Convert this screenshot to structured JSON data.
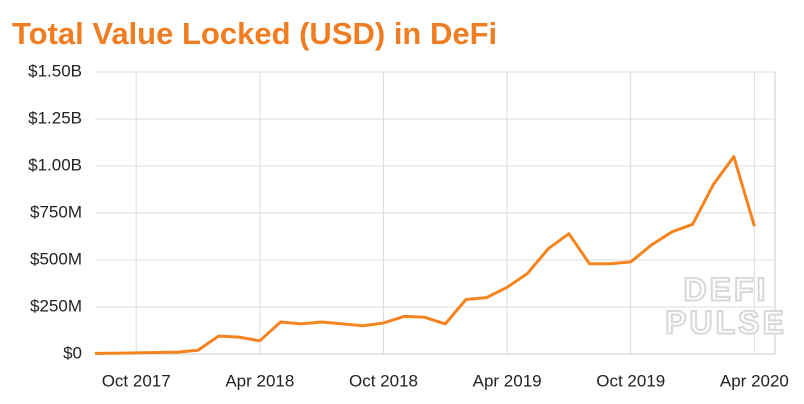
{
  "chart_data": {
    "type": "line",
    "title": "Total Value Locked (USD) in DeFi",
    "annotations": [
      "DEFI",
      "PULSE"
    ],
    "x": [
      "2017-08",
      "2017-09",
      "2017-10",
      "2017-11",
      "2017-12",
      "2018-01",
      "2018-02",
      "2018-03",
      "2018-04",
      "2018-05",
      "2018-06",
      "2018-07",
      "2018-08",
      "2018-09",
      "2018-10",
      "2018-11",
      "2018-12",
      "2019-01",
      "2019-02",
      "2019-03",
      "2019-04",
      "2019-05",
      "2019-06",
      "2019-07",
      "2019-08",
      "2019-09",
      "2019-10",
      "2019-11",
      "2019-12",
      "2020-01",
      "2020-02",
      "2020-03",
      "2020-04"
    ],
    "series": [
      {
        "name": "Total Value Locked",
        "color": "#f5841f",
        "values": [
          3000000,
          4000000,
          6000000,
          8000000,
          10000000,
          20000000,
          95000000,
          90000000,
          70000000,
          170000000,
          160000000,
          170000000,
          160000000,
          150000000,
          165000000,
          200000000,
          195000000,
          160000000,
          290000000,
          300000000,
          355000000,
          430000000,
          560000000,
          640000000,
          480000000,
          480000000,
          490000000,
          580000000,
          650000000,
          690000000,
          900000000,
          1050000000,
          680000000
        ]
      }
    ],
    "xlim": [
      "2017-08",
      "2020-05"
    ],
    "xticks": [
      {
        "value": "2017-10",
        "label": "Oct 2017"
      },
      {
        "value": "2018-04",
        "label": "Apr 2018"
      },
      {
        "value": "2018-10",
        "label": "Oct 2018"
      },
      {
        "value": "2019-04",
        "label": "Apr 2019"
      },
      {
        "value": "2019-10",
        "label": "Oct 2019"
      },
      {
        "value": "2020-04",
        "label": "Apr 2020"
      }
    ],
    "ylim": [
      0,
      1500000000
    ],
    "yticks": [
      {
        "value": 0,
        "label": "$0"
      },
      {
        "value": 250000000,
        "label": "$250M"
      },
      {
        "value": 500000000,
        "label": "$500M"
      },
      {
        "value": 750000000,
        "label": "$750M"
      },
      {
        "value": 1000000000,
        "label": "$1.00B"
      },
      {
        "value": 1250000000,
        "label": "$1.25B"
      },
      {
        "value": 1500000000,
        "label": "$1.50B"
      }
    ],
    "grid": true
  }
}
